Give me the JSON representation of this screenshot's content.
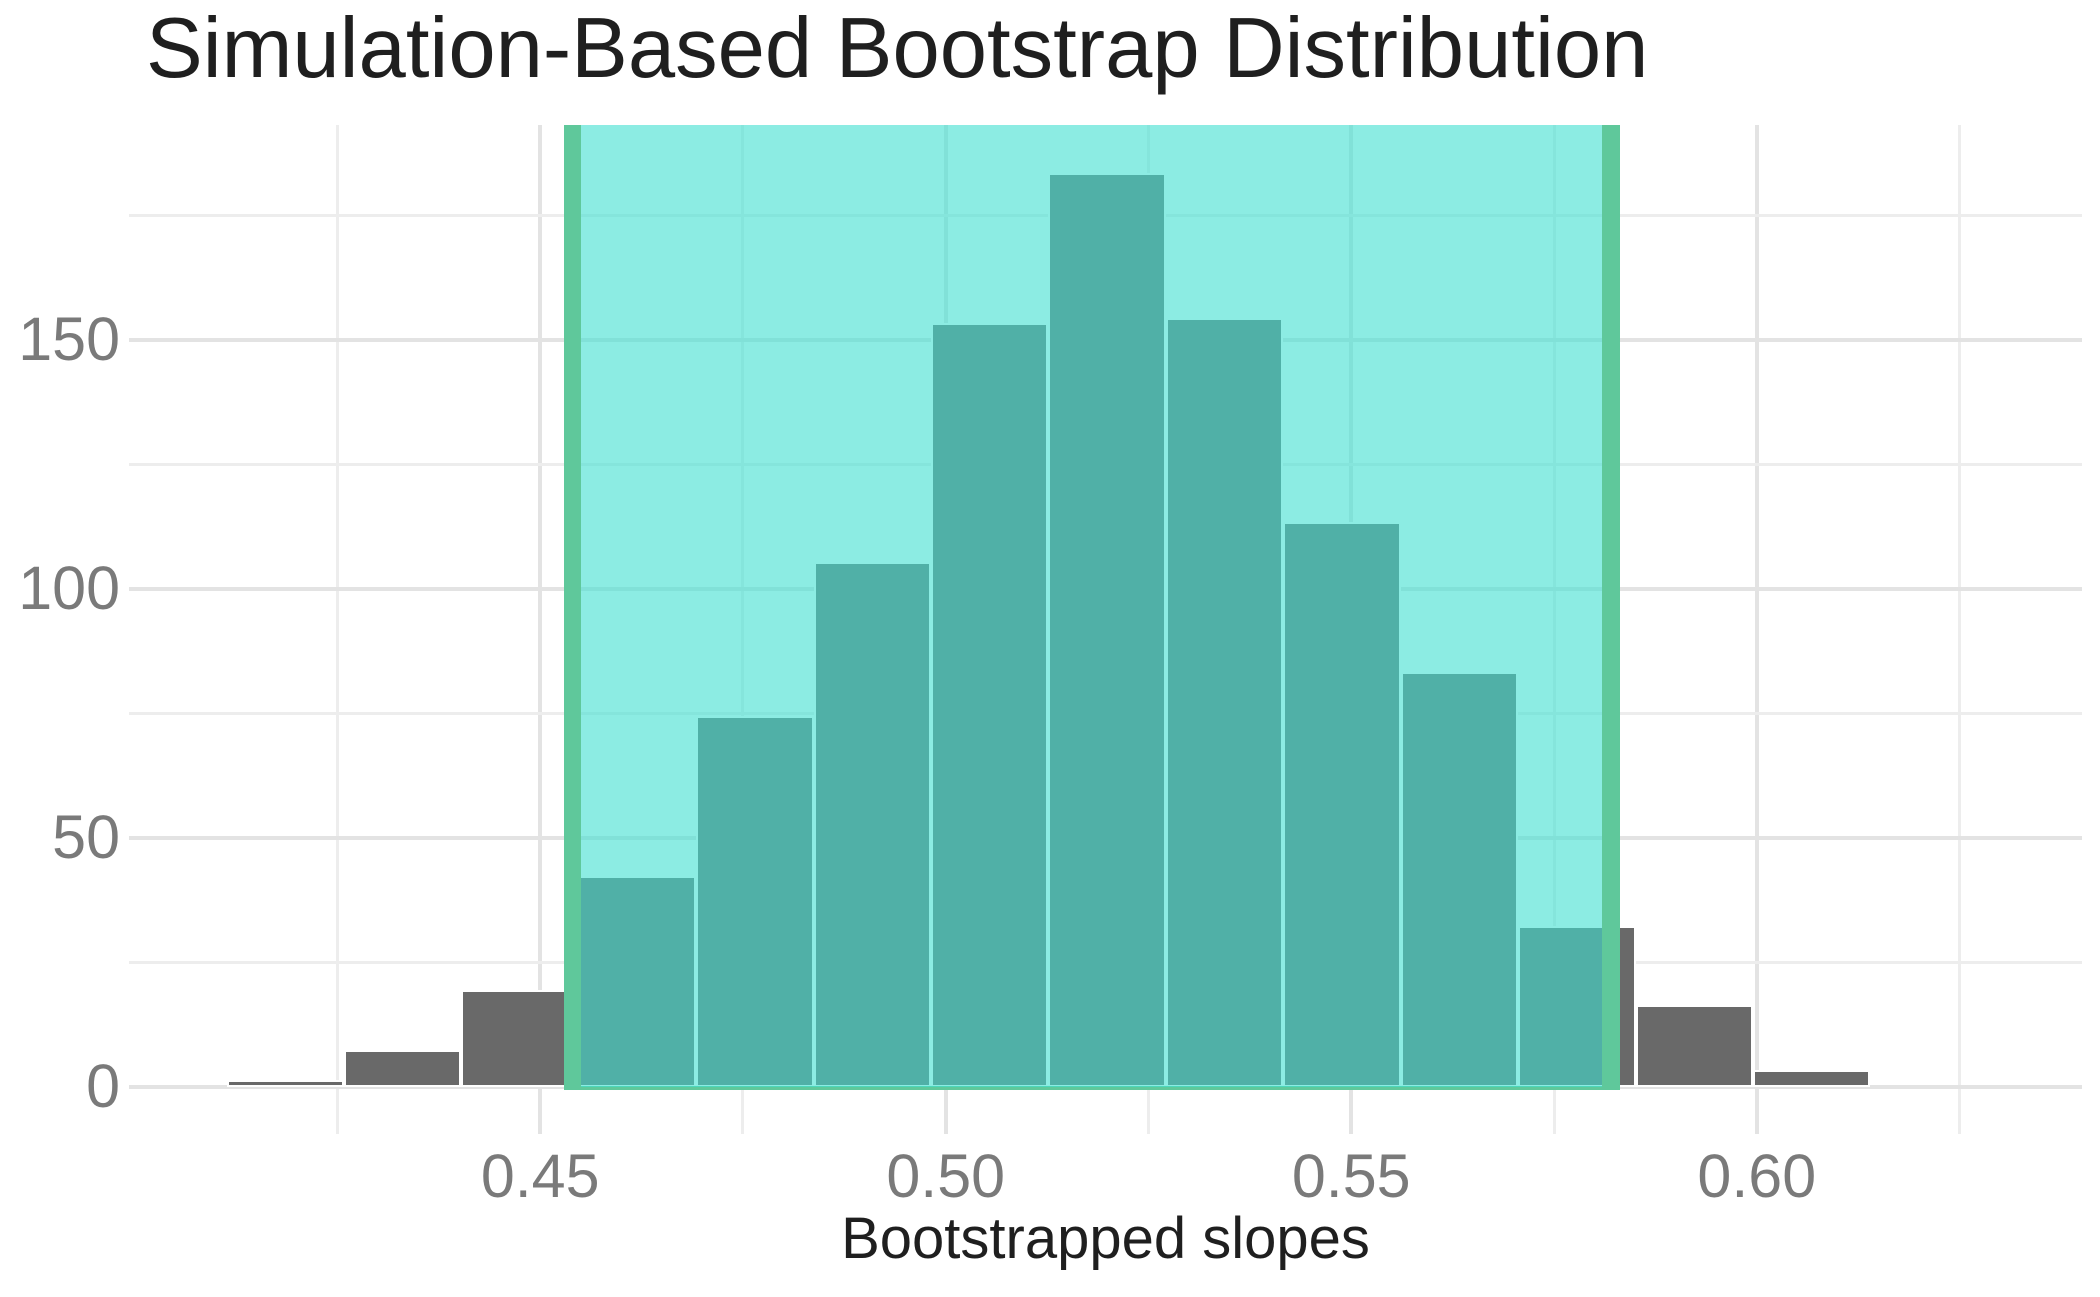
{
  "chart_data": {
    "type": "histogram",
    "title": "Simulation-Based Bootstrap Distribution",
    "xlabel": "Bootstrapped slopes",
    "ylabel": "",
    "bin_start": 0.41134,
    "bin_width": 0.014476,
    "counts": [
      1,
      7,
      19,
      42,
      74,
      105,
      153,
      183,
      154,
      113,
      83,
      32,
      16,
      3
    ],
    "x_ticks": [
      0.45,
      0.5,
      0.55,
      0.6
    ],
    "x_tick_labels": [
      "0.45",
      "0.50",
      "0.55",
      "0.60"
    ],
    "x_minor_ticks": [
      0.425,
      0.475,
      0.525,
      0.575,
      0.625
    ],
    "y_ticks": [
      0,
      50,
      100,
      150
    ],
    "y_tick_labels": [
      "0",
      "50",
      "100",
      "150"
    ],
    "y_minor_ticks": [
      25,
      75,
      125,
      175
    ],
    "xlim": [
      0.3993,
      0.6401
    ],
    "ylim": [
      -9.4,
      193.1
    ],
    "confidence_interval": {
      "lower": 0.454,
      "upper": 0.582
    },
    "grid": true,
    "legend": false,
    "colors": {
      "bar_fill": "#696969",
      "bar_border": "#ffffff",
      "shade_fill": "#40E0D0",
      "shade_alpha": 0.6,
      "ci_line": "#5FC89B",
      "grid_major": "#E3E3E3",
      "grid_minor": "#EDEDED",
      "axis_text": "#7A7A7A",
      "title_text": "#1F1F1F",
      "background": "#FFFFFF"
    }
  }
}
